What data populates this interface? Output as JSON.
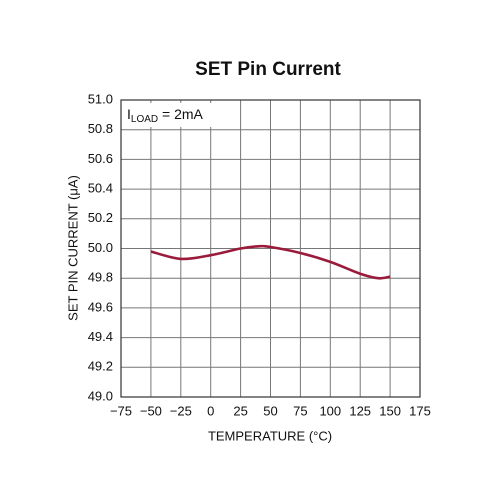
{
  "chart_data": {
    "type": "line",
    "title": "SET Pin Current",
    "xlabel": "TEMPERATURE (°C)",
    "ylabel": "SET PIN CURRENT (μA)",
    "annotation": {
      "symbol": "I",
      "subscript": "LOAD",
      "text": " = 2mA"
    },
    "x": [
      -50,
      -25,
      0,
      25,
      40,
      50,
      75,
      100,
      125,
      140,
      150
    ],
    "series": [
      {
        "color": "#9b1b3c",
        "values": [
          49.98,
          49.93,
          49.955,
          50.0,
          50.015,
          50.01,
          49.97,
          49.91,
          49.83,
          49.8,
          49.81
        ]
      }
    ],
    "xlim": [
      -75,
      175
    ],
    "xticks": [
      {
        "value": -75,
        "label": "−75"
      },
      {
        "value": -50,
        "label": "−50"
      },
      {
        "value": -25,
        "label": "−25"
      },
      0,
      25,
      50,
      75,
      100,
      125,
      150,
      175
    ],
    "ylim": [
      49.0,
      51.0
    ],
    "yticks": [
      {
        "value": 49.0,
        "label": "49.0"
      },
      49.2,
      49.4,
      49.6,
      49.8,
      {
        "value": 50.0,
        "label": "50.0"
      },
      50.2,
      50.4,
      50.6,
      50.8,
      {
        "value": 51.0,
        "label": "51.0"
      }
    ],
    "grid": true
  }
}
